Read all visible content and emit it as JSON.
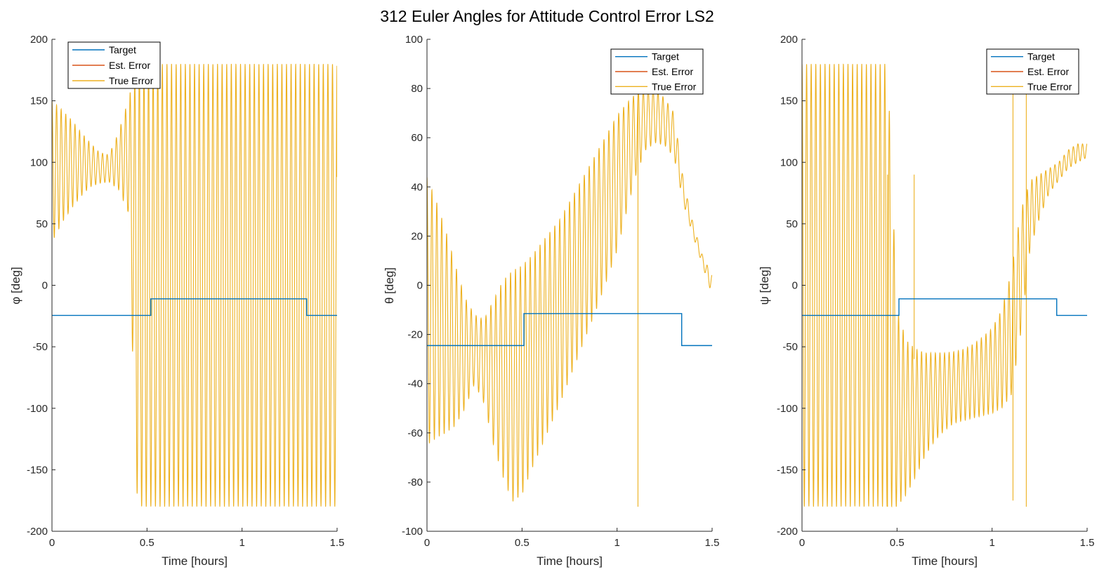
{
  "figure": {
    "title": "312 Euler Angles for Attitude Control Error LS2",
    "background": "#ffffff"
  },
  "colors": {
    "target": "#0072BD",
    "est_error": "#D95319",
    "true_error": "#EDB120",
    "axis": "#262626",
    "legend_border": "#000000"
  },
  "chart_data": [
    {
      "type": "line",
      "xlabel": "Time [hours]",
      "ylabel": "φ [deg]",
      "xlim": [
        0,
        1.5
      ],
      "ylim": [
        -200,
        200
      ],
      "xticks": [
        0,
        0.5,
        1,
        1.5
      ],
      "xtick_labels": [
        "0",
        "0.5",
        "1",
        "1.5"
      ],
      "yticks": [
        -200,
        -150,
        -100,
        -50,
        0,
        50,
        100,
        150,
        200
      ],
      "ytick_labels": [
        "-200",
        "-150",
        "-100",
        "-50",
        "0",
        "50",
        "100",
        "150",
        "200"
      ],
      "legend": [
        "Target",
        "Est. Error",
        "True Error"
      ],
      "legend_position": "top-left",
      "series": [
        {
          "name": "Target",
          "x": [
            0,
            0.52,
            0.52,
            1.34,
            1.34,
            1.5
          ],
          "y": [
            -24.5,
            -24.5,
            -11,
            -11,
            -24.5,
            -24.5
          ]
        },
        {
          "name": "Est. Error",
          "x": [],
          "y": []
        },
        {
          "name": "True Error",
          "envelope": {
            "t": [
              0,
              0.05,
              0.1,
              0.15,
              0.2,
              0.25,
              0.3,
              0.35,
              0.4,
              0.45,
              0.5,
              0.6,
              0.7,
              0.8,
              0.9,
              1.0,
              1.1,
              1.2,
              1.3,
              1.4,
              1.5
            ],
            "upper": [
              150,
              143,
              135,
              125,
              116,
              108,
              106,
              124,
              150,
              180,
              180,
              180,
              180,
              180,
              180,
              180,
              180,
              180,
              180,
              180,
              180
            ],
            "lower": [
              35,
              50,
              62,
              72,
              80,
              83,
              84,
              78,
              60,
              -180,
              -180,
              -180,
              -180,
              -180,
              -180,
              -180,
              -180,
              -180,
              -180,
              -180,
              -180
            ],
            "cycles": 62,
            "end_value": 88
          }
        }
      ]
    },
    {
      "type": "line",
      "xlabel": "Time [hours]",
      "ylabel": "θ [deg]",
      "xlim": [
        0,
        1.5
      ],
      "ylim": [
        -100,
        100
      ],
      "xticks": [
        0,
        0.5,
        1,
        1.5
      ],
      "xtick_labels": [
        "0",
        "0.5",
        "1",
        "1.5"
      ],
      "yticks": [
        -100,
        -80,
        -60,
        -40,
        -20,
        0,
        20,
        40,
        60,
        80,
        100
      ],
      "ytick_labels": [
        "-100",
        "-80",
        "-60",
        "-40",
        "-20",
        "0",
        "20",
        "40",
        "60",
        "80",
        "100"
      ],
      "legend": [
        "Target",
        "Est. Error",
        "True Error"
      ],
      "legend_position": "top-right",
      "series": [
        {
          "name": "Target",
          "x": [
            0,
            0.51,
            0.51,
            1.34,
            1.34,
            1.5
          ],
          "y": [
            -24.5,
            -24.5,
            -11.5,
            -11.5,
            -24.5,
            -24.5
          ]
        },
        {
          "name": "Est. Error",
          "x": [],
          "y": []
        },
        {
          "name": "True Error",
          "envelope": {
            "t": [
              0,
              0.05,
              0.1,
              0.15,
              0.2,
              0.25,
              0.3,
              0.35,
              0.4,
              0.45,
              0.5,
              0.55,
              0.6,
              0.65,
              0.7,
              0.75,
              0.8,
              0.85,
              0.9,
              0.95,
              1.0,
              1.05,
              1.1,
              1.15,
              1.2,
              1.25,
              1.3,
              1.35,
              1.4,
              1.45,
              1.5
            ],
            "upper": [
              44,
              34,
              22,
              8,
              -5,
              -12,
              -14,
              -6,
              2,
              6,
              8,
              12,
              17,
              22,
              27,
              34,
              41,
              48,
              55,
              62,
              69,
              74,
              78,
              80,
              80,
              76,
              70,
              42,
              25,
              12,
              4
            ],
            "lower": [
              -65,
              -62,
              -60,
              -57,
              -50,
              -40,
              -48,
              -65,
              -78,
              -88,
              -85,
              -75,
              -66,
              -57,
              -48,
              -38,
              -28,
              -18,
              -8,
              3,
              14,
              30,
              45,
              55,
              58,
              57,
              52,
              33,
              20,
              8,
              -4
            ],
            "cycles": 58,
            "end_value": 4
          }
        },
        {
          "name": "True Error spike",
          "x": [
            1.11,
            1.11
          ],
          "y": [
            80,
            -90
          ]
        }
      ]
    },
    {
      "type": "line",
      "xlabel": "Time [hours]",
      "ylabel": "ψ [deg]",
      "xlim": [
        0,
        1.5
      ],
      "ylim": [
        -200,
        200
      ],
      "xticks": [
        0,
        0.5,
        1,
        1.5
      ],
      "xtick_labels": [
        "0",
        "0.5",
        "1",
        "1.5"
      ],
      "yticks": [
        -200,
        -150,
        -100,
        -50,
        0,
        50,
        100,
        150,
        200
      ],
      "ytick_labels": [
        "-200",
        "-150",
        "-100",
        "-50",
        "0",
        "50",
        "100",
        "150",
        "200"
      ],
      "legend": [
        "Target",
        "Est. Error",
        "True Error"
      ],
      "legend_position": "top-right",
      "series": [
        {
          "name": "Target",
          "x": [
            0,
            0.51,
            0.51,
            1.34,
            1.34,
            1.5
          ],
          "y": [
            -24.5,
            -24.5,
            -11,
            -11,
            -24.5,
            -24.5
          ]
        },
        {
          "name": "Est. Error",
          "x": [],
          "y": []
        },
        {
          "name": "True Error",
          "envelope": {
            "t": [
              0,
              0.05,
              0.1,
              0.15,
              0.2,
              0.25,
              0.3,
              0.35,
              0.4,
              0.45,
              0.5,
              0.55,
              0.6,
              0.65,
              0.7,
              0.75,
              0.8,
              0.85,
              0.9,
              0.95,
              1.0,
              1.05,
              1.1,
              1.15,
              1.2,
              1.25,
              1.3,
              1.35,
              1.4,
              1.45,
              1.5
            ],
            "upper": [
              180,
              180,
              180,
              180,
              180,
              180,
              180,
              180,
              180,
              180,
              -20,
              -45,
              -52,
              -55,
              -55,
              -55,
              -54,
              -52,
              -48,
              -42,
              -35,
              -20,
              10,
              60,
              85,
              90,
              95,
              100,
              110,
              115,
              115
            ],
            "lower": [
              -180,
              -180,
              -180,
              -180,
              -180,
              -180,
              -180,
              -180,
              -180,
              -180,
              -180,
              -170,
              -155,
              -138,
              -126,
              -118,
              -112,
              -110,
              -108,
              -106,
              -104,
              -100,
              -90,
              -40,
              30,
              55,
              75,
              85,
              95,
              100,
              104
            ],
            "cycles": 62,
            "end_value": 115
          }
        },
        {
          "name": "True Error spikes",
          "segments": [
            {
              "x": [
                0.45,
                0.45
              ],
              "y": [
                90,
                -180
              ]
            },
            {
              "x": [
                0.59,
                0.59
              ],
              "y": [
                90,
                -60
              ]
            },
            {
              "x": [
                1.11,
                1.11
              ],
              "y": [
                160,
                -175
              ]
            },
            {
              "x": [
                1.18,
                1.18
              ],
              "y": [
                160,
                -180
              ]
            }
          ]
        }
      ]
    }
  ]
}
